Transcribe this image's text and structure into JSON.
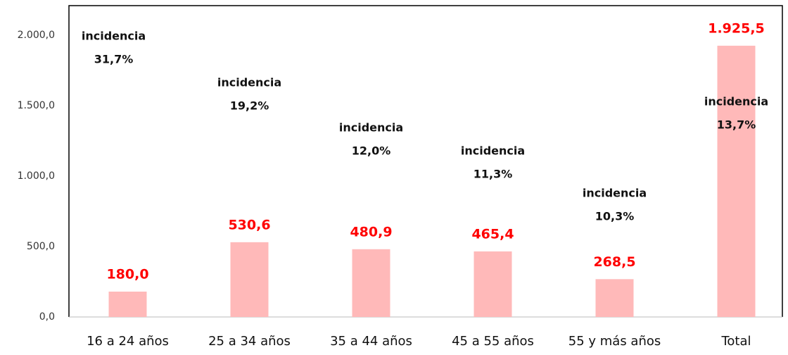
{
  "chart_data": {
    "type": "bar",
    "categories": [
      "16 a 24 años",
      "25 a 34 años",
      "35 a 44 años",
      "45 a 55 años",
      "55 y más años",
      "Total"
    ],
    "values": [
      180.0,
      530.6,
      480.9,
      465.4,
      268.5,
      1925.5
    ],
    "value_labels": [
      "180,0",
      "530,6",
      "480,9",
      "465,4",
      "268,5",
      "1.925,5"
    ],
    "color": "#ffb9b9",
    "value_label_color": "#ff0000",
    "annotations": [
      {
        "label": "incidencia",
        "value_label": "31,7%"
      },
      {
        "label": "incidencia",
        "value_label": "19,2%"
      },
      {
        "label": "incidencia",
        "value_label": "12,0%"
      },
      {
        "label": "incidencia",
        "value_label": "11,3%"
      },
      {
        "label": "incidencia",
        "value_label": "10,3%"
      },
      {
        "label": "incidencia",
        "value_label": "13,7%"
      }
    ],
    "ylim": [
      0,
      2210
    ],
    "yticks": [
      {
        "value": 0,
        "label": "0,0"
      },
      {
        "value": 500,
        "label": "500,0"
      },
      {
        "value": 1000,
        "label": "1.000,0"
      },
      {
        "value": 1500,
        "label": "1.500,0"
      },
      {
        "value": 2000,
        "label": "2.000,0"
      }
    ],
    "grid": false
  }
}
